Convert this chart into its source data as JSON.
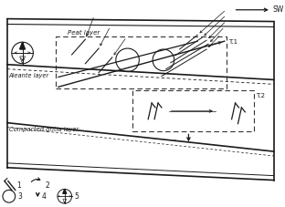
{
  "fig_width": 3.12,
  "fig_height": 2.27,
  "dpi": 100,
  "bg_color": "#ffffff",
  "peat_layer_label": "Peat layer",
  "aleante_layer_label": "Aleante layer",
  "compacted_layer_label": "Compacted gritia layer",
  "sw_label": "SW",
  "t1_label": "T.1",
  "t2_label": "T.2",
  "line_color": "#1a1a1a",
  "dashed_color": "#333333"
}
